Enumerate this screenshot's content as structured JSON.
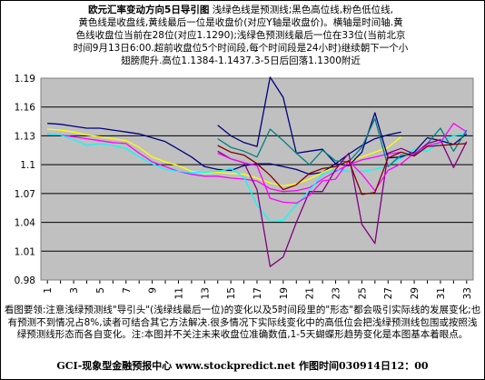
{
  "header": {
    "title": "欧元汇率变动方向5日导引图",
    "lines": [
      "浅绿色线是预测线;黑色高位线,粉色低位线,",
      "黄色线是收盘线,黄线最后一位是收盘价(对应Y轴是收盘价)。横轴是时间轴.黄",
      "色线收盘位当前在28位(对应1.1290);浅绿色预测线最后一位在33位(当前北京",
      "时间9月13日6:00.超前收盘位5个时间段,每个时间段是24小时)继续朝下一个小",
      "翅膀爬升.高位1.1384-1.1437.3-5日后回落1.1300附近"
    ]
  },
  "footer": {
    "note": "看图要领:注意浅绿预测线\"导引头\"(浅绿线最后一位)的变化以及5时间段里的\"形态\"都会吸引实际线的发展变化;也有预测不到情况占8%,读者可结合其它方法解决.很多情况下实际线变化中的高低位会把浅绿预测线包围或按照浅绿预测线形态而各自变化。注:本图并不关注未来收盘位准确数值,1-5天蝴蝶形趋势变化是本图基本着眼点。",
    "credit": "GCI-现象型金融预报中心    www.stockpredict.net  作图时间030914日12：00"
  },
  "chart_data": {
    "type": "line",
    "title": "欧元汇率变动方向5日导引图",
    "ylim": [
      0.98,
      1.19
    ],
    "y_ticks": [
      "0.98",
      "1.01",
      "1.04",
      "1.07",
      "1.1",
      "1.13",
      "1.16",
      "1.19"
    ],
    "x_ticks": [
      1,
      3,
      5,
      7,
      9,
      11,
      13,
      15,
      17,
      19,
      21,
      23,
      25,
      27,
      29,
      31,
      33
    ],
    "plot_background": "#c0c0c0",
    "grid": true,
    "series": [
      {
        "color": "#000080",
        "x": [
          1,
          2,
          3,
          4,
          5,
          6,
          7,
          8,
          9,
          10,
          11,
          12,
          13,
          14,
          15,
          16,
          17,
          18,
          19,
          20,
          21,
          22,
          23,
          24,
          25,
          26,
          27,
          28
        ],
        "values": [
          1.143,
          1.142,
          1.14,
          1.138,
          1.138,
          1.136,
          1.134,
          1.132,
          1.128,
          1.124,
          1.116,
          1.108,
          1.098,
          1.095,
          1.094,
          1.099,
          1.101,
          1.101,
          1.098,
          1.095,
          1.09,
          1.092,
          1.101,
          1.111,
          1.12,
          1.127,
          1.131,
          1.134
        ]
      },
      {
        "color": "#ff00ff",
        "x": [
          1,
          2,
          3,
          4,
          5,
          6,
          7,
          8,
          9,
          10,
          11,
          12,
          13,
          14,
          15,
          16,
          17,
          18,
          19,
          20,
          21,
          22,
          23,
          24,
          25,
          26,
          27,
          28
        ],
        "values": [
          1.132,
          1.131,
          1.129,
          1.127,
          1.125,
          1.123,
          1.122,
          1.112,
          1.103,
          1.098,
          1.093,
          1.09,
          1.088,
          1.088,
          1.086,
          1.085,
          1.083,
          1.075,
          1.072,
          1.073,
          1.076,
          1.085,
          1.093,
          1.1,
          1.105,
          1.108,
          1.111,
          1.113
        ]
      },
      {
        "color": "#ffff00",
        "x": [
          1,
          2,
          3,
          4,
          5,
          6,
          7,
          8,
          9,
          10,
          11,
          12,
          13,
          14,
          15,
          16,
          17,
          18,
          19,
          20,
          21,
          22,
          23,
          24,
          25,
          26,
          27,
          28
        ],
        "values": [
          1.137,
          1.136,
          1.134,
          1.131,
          1.129,
          1.127,
          1.125,
          1.118,
          1.108,
          1.103,
          1.099,
          1.093,
          1.091,
          1.092,
          1.091,
          1.09,
          1.086,
          1.081,
          1.078,
          1.08,
          1.085,
          1.092,
          1.098,
          1.103,
          1.108,
          1.113,
          1.118,
          1.129
        ]
      },
      {
        "color": "#00ffff",
        "x": [
          1,
          2,
          3,
          4,
          5,
          6,
          7,
          8,
          9,
          10,
          11,
          12,
          13,
          14,
          15,
          16,
          17,
          18,
          19,
          20,
          21,
          22,
          23,
          24,
          25,
          26,
          27,
          28,
          29,
          30,
          31,
          32,
          33
        ],
        "values": [
          1.132,
          1.131,
          1.126,
          1.12,
          1.122,
          1.12,
          1.117,
          1.108,
          1.101,
          1.095,
          1.093,
          1.092,
          1.092,
          1.093,
          1.096,
          1.087,
          1.058,
          1.041,
          1.042,
          1.058,
          1.073,
          1.09,
          1.095,
          1.093,
          1.093,
          1.095,
          1.099,
          1.107,
          1.116,
          1.114,
          1.124,
          1.13,
          1.133
        ]
      },
      {
        "color": "#000080",
        "x": [
          14,
          15,
          16,
          17,
          18,
          19,
          20,
          21,
          22,
          23,
          24,
          25,
          26,
          27,
          28,
          29,
          30,
          31,
          32,
          33
        ],
        "values": [
          1.141,
          1.13,
          1.123,
          1.119,
          1.191,
          1.17,
          1.112,
          1.114,
          1.116,
          1.101,
          1.099,
          1.113,
          1.154,
          1.107,
          1.108,
          1.113,
          1.128,
          1.125,
          1.121,
          1.132
        ]
      },
      {
        "color": "#008080",
        "x": [
          14,
          15,
          16,
          17,
          18,
          19,
          20,
          21,
          22,
          23,
          24,
          25,
          26,
          27,
          28,
          29,
          30,
          31,
          32,
          33
        ],
        "values": [
          1.127,
          1.118,
          1.114,
          1.108,
          1.137,
          1.125,
          1.112,
          1.1,
          1.115,
          1.104,
          1.103,
          1.118,
          1.148,
          1.098,
          1.11,
          1.11,
          1.122,
          1.138,
          1.114,
          1.136
        ]
      },
      {
        "color": "#800080",
        "x": [
          14,
          15,
          16,
          17,
          18,
          19,
          20,
          21,
          22,
          23,
          24,
          25,
          26,
          27,
          28,
          29,
          30,
          31,
          32,
          33
        ],
        "values": [
          1.114,
          1.106,
          1.102,
          1.074,
          0.994,
          1.004,
          1.04,
          1.072,
          1.072,
          1.095,
          1.112,
          1.038,
          1.018,
          1.112,
          1.117,
          1.111,
          1.122,
          1.126,
          1.097,
          1.124
        ]
      },
      {
        "color": "#ff00ff",
        "x": [
          14,
          15,
          16,
          17,
          18,
          19,
          20,
          21,
          22,
          23,
          24,
          25,
          26,
          27,
          28,
          29,
          30,
          31,
          32,
          33
        ],
        "values": [
          1.112,
          1.106,
          1.102,
          1.099,
          1.065,
          1.061,
          1.06,
          1.068,
          1.083,
          1.085,
          1.104,
          1.09,
          1.073,
          1.094,
          1.101,
          1.112,
          1.12,
          1.123,
          1.143,
          1.134
        ]
      },
      {
        "color": "#800000",
        "x": [
          14,
          15,
          16,
          17,
          18,
          19,
          20,
          21,
          22,
          23,
          24,
          25,
          26,
          27,
          28,
          29,
          30,
          31,
          32,
          33
        ],
        "values": [
          1.12,
          1.113,
          1.11,
          1.101,
          1.089,
          1.074,
          1.079,
          1.091,
          1.096,
          1.098,
          1.104,
          1.069,
          1.071,
          1.107,
          1.113,
          1.109,
          1.119,
          1.12,
          1.121,
          1.122
        ]
      }
    ]
  }
}
